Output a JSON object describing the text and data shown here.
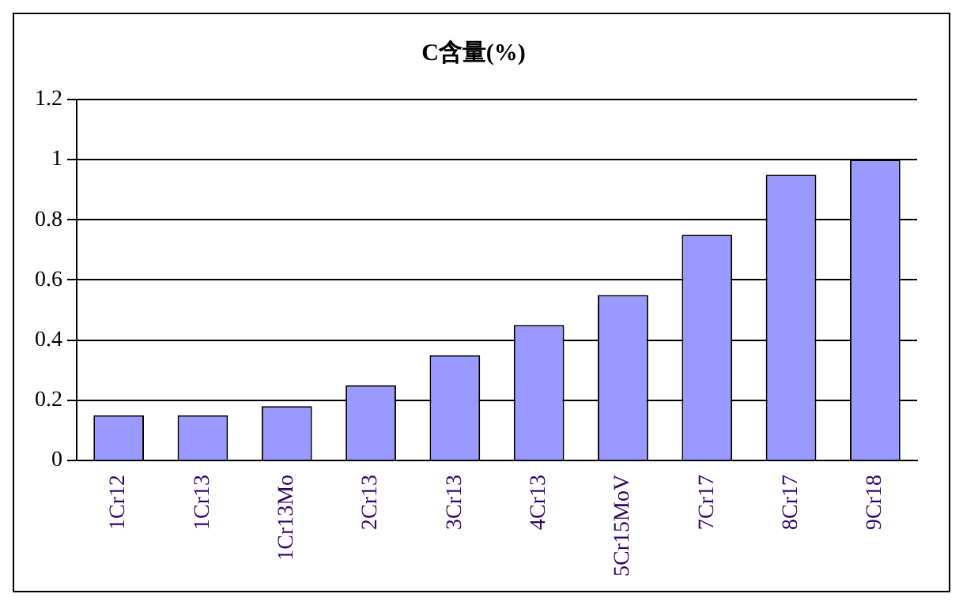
{
  "chart_data": {
    "type": "bar",
    "title": "C含量(%)",
    "categories": [
      "1Cr12",
      "1Cr13",
      "1Cr13Mo",
      "2Cr13",
      "3Cr13",
      "4Cr13",
      "5Cr15MoV",
      "7Cr17",
      "8Cr17",
      "9Cr18"
    ],
    "values": [
      0.15,
      0.15,
      0.18,
      0.25,
      0.35,
      0.45,
      0.55,
      0.75,
      0.95,
      1.0
    ],
    "color": "#9999ff",
    "ylim": [
      0,
      1.2
    ],
    "yticks": [
      0,
      0.2,
      0.4,
      0.6,
      0.8,
      1,
      1.2
    ],
    "grid": "y",
    "legend": false
  }
}
